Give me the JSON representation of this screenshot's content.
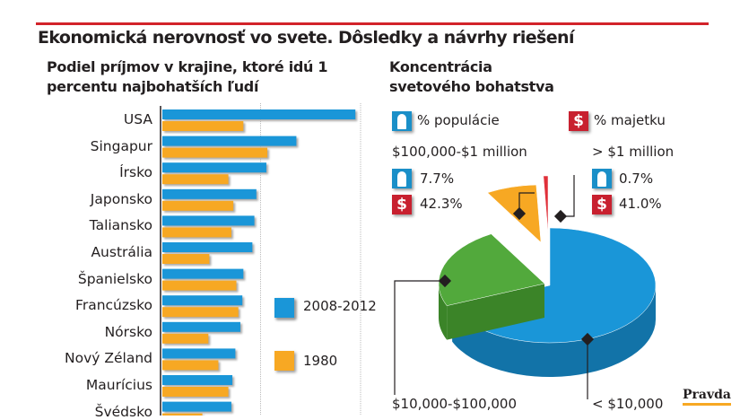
{
  "title": "Ekonomická nerovnosť vo svete. Dôsledky a návrhy riešení",
  "source": "Pravda",
  "colors": {
    "blue": "#1a96d8",
    "orange": "#f7a823",
    "green": "#52a93c",
    "red": "#e0303a",
    "title_rule": "#d2232a"
  },
  "chart_data": [
    {
      "type": "bar",
      "orientation": "horizontal",
      "title": "Podiel príjmov v krajine, ktoré idú 1 percentu najbohatších ľudí",
      "categories": [
        "USA",
        "Singapur",
        "Írsko",
        "Japonsko",
        "Taliansko",
        "Austrália",
        "Španielsko",
        "Francúzsko",
        "Nórsko",
        "Nový Zéland",
        "Maurícius",
        "Švédsko"
      ],
      "series": [
        {
          "name": "2008-2012",
          "color": "#1a96d8",
          "values": [
            19.3,
            13.4,
            10.4,
            9.4,
            9.2,
            9.0,
            8.1,
            8.0,
            7.8,
            7.3,
            7.0,
            6.9
          ]
        },
        {
          "name": "1980",
          "color": "#f7a823",
          "values": [
            8.1,
            10.5,
            6.6,
            7.1,
            6.9,
            4.7,
            7.4,
            7.6,
            4.6,
            5.6,
            6.6,
            4.0
          ]
        }
      ],
      "xlim": [
        0,
        20
      ],
      "grid": true,
      "gridlines": [
        10,
        20
      ],
      "legend": "right"
    },
    {
      "type": "pie",
      "title": "Koncentrácia svetového bohatstva",
      "legend": {
        "population": "% populácie",
        "wealth": "% majetku"
      },
      "slices": [
        {
          "label": "< $10,000",
          "population": 68.7,
          "color": "#1a96d8"
        },
        {
          "label": "$10,000-$100,000",
          "population": 22.9,
          "color": "#52a93c"
        },
        {
          "label": "$100,000-$1 million",
          "population": 7.7,
          "wealth": 42.3,
          "population_text": "7.7%",
          "wealth_text": "42.3%",
          "color": "#f7a823"
        },
        {
          "label": "> $1 million",
          "population": 0.7,
          "wealth": 41.0,
          "population_text": "0.7%",
          "wealth_text": "41.0%",
          "color": "#e0303a"
        }
      ]
    }
  ]
}
